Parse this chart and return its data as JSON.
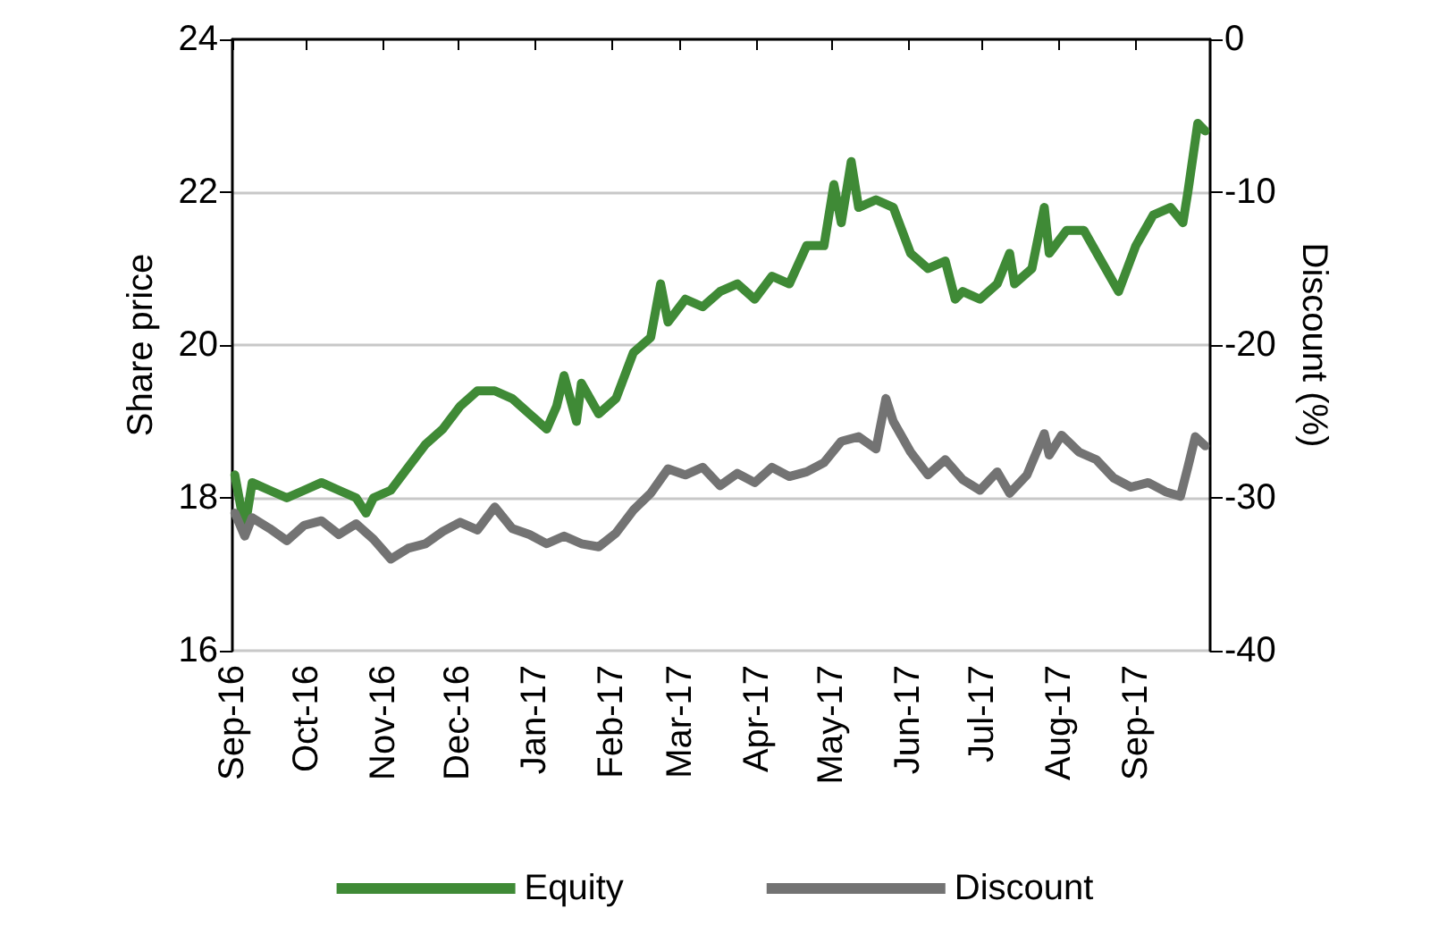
{
  "chart_data": {
    "type": "line",
    "ylabel": "Share price",
    "y2label": "Discount (%)",
    "xlim": [
      "2016-09-01",
      "2017-10-01"
    ],
    "xticks": [
      {
        "value": "2016-09-01",
        "label": "Sep-16"
      },
      {
        "value": "2016-10-01",
        "label": "Oct-16"
      },
      {
        "value": "2016-11-01",
        "label": "Nov-16"
      },
      {
        "value": "2016-12-01",
        "label": "Dec-16"
      },
      {
        "value": "2017-01-01",
        "label": "Jan-17"
      },
      {
        "value": "2017-02-01",
        "label": "Feb-17"
      },
      {
        "value": "2017-03-01",
        "label": "Mar-17"
      },
      {
        "value": "2017-04-01",
        "label": "Apr-17"
      },
      {
        "value": "2017-05-01",
        "label": "May-17"
      },
      {
        "value": "2017-06-01",
        "label": "Jun-17"
      },
      {
        "value": "2017-07-01",
        "label": "Jul-17"
      },
      {
        "value": "2017-08-01",
        "label": "Aug-17"
      },
      {
        "value": "2017-09-01",
        "label": "Sep-17"
      }
    ],
    "ylim": [
      16,
      24
    ],
    "yticks": [
      16,
      18,
      20,
      22,
      24
    ],
    "y2lim": [
      -40,
      0
    ],
    "y2ticks": [
      -40,
      -30,
      -20,
      -10,
      0
    ],
    "grid": "y",
    "legend": "bottom",
    "marker": "none",
    "line_style": "solid",
    "series": [
      {
        "name": "Equity",
        "color": "#3f8a36",
        "x": [
          "2016-09-02",
          "2016-09-06",
          "2016-09-09",
          "2016-09-16",
          "2016-09-23",
          "2016-09-30",
          "2016-10-07",
          "2016-10-14",
          "2016-10-21",
          "2016-10-25",
          "2016-10-28",
          "2016-11-04",
          "2016-11-11",
          "2016-11-18",
          "2016-11-25",
          "2016-12-02",
          "2016-12-09",
          "2016-12-16",
          "2016-12-23",
          "2016-12-30",
          "2017-01-06",
          "2017-01-10",
          "2017-01-13",
          "2017-01-18",
          "2017-01-20",
          "2017-01-27",
          "2017-02-03",
          "2017-02-10",
          "2017-02-17",
          "2017-02-21",
          "2017-02-24",
          "2017-03-03",
          "2017-03-10",
          "2017-03-17",
          "2017-03-24",
          "2017-03-31",
          "2017-04-07",
          "2017-04-14",
          "2017-04-21",
          "2017-04-28",
          "2017-05-02",
          "2017-05-05",
          "2017-05-09",
          "2017-05-12",
          "2017-05-19",
          "2017-05-26",
          "2017-06-02",
          "2017-06-09",
          "2017-06-16",
          "2017-06-20",
          "2017-06-23",
          "2017-06-30",
          "2017-07-07",
          "2017-07-12",
          "2017-07-14",
          "2017-07-21",
          "2017-07-26",
          "2017-07-28",
          "2017-08-04",
          "2017-08-11",
          "2017-08-18",
          "2017-08-25",
          "2017-09-01",
          "2017-09-08",
          "2017-09-15",
          "2017-09-20",
          "2017-09-22",
          "2017-09-26",
          "2017-09-29"
        ],
        "values": [
          18.3,
          17.6,
          18.2,
          18.1,
          18.0,
          18.1,
          18.2,
          18.1,
          18.0,
          17.8,
          18.0,
          18.1,
          18.4,
          18.7,
          18.9,
          19.2,
          19.4,
          19.4,
          19.3,
          19.1,
          18.9,
          19.2,
          19.6,
          19.0,
          19.5,
          19.1,
          19.3,
          19.9,
          20.1,
          20.8,
          20.3,
          20.6,
          20.5,
          20.7,
          20.8,
          20.6,
          20.9,
          20.8,
          21.3,
          21.3,
          22.1,
          21.6,
          22.4,
          21.8,
          21.9,
          21.8,
          21.2,
          21.0,
          21.1,
          20.6,
          20.7,
          20.6,
          20.8,
          21.2,
          20.8,
          21.0,
          21.8,
          21.2,
          21.5,
          21.5,
          21.1,
          20.7,
          21.3,
          21.7,
          21.8,
          21.6,
          22.0,
          22.9,
          22.8
        ]
      },
      {
        "name": "Discount",
        "color": "#737373",
        "axis": "y2",
        "x": [
          "2016-09-02",
          "2016-09-06",
          "2016-09-09",
          "2016-09-16",
          "2016-09-23",
          "2016-09-30",
          "2016-10-07",
          "2016-10-14",
          "2016-10-21",
          "2016-10-28",
          "2016-11-04",
          "2016-11-11",
          "2016-11-18",
          "2016-11-25",
          "2016-12-02",
          "2016-12-09",
          "2016-12-16",
          "2016-12-23",
          "2016-12-30",
          "2017-01-06",
          "2017-01-13",
          "2017-01-20",
          "2017-01-27",
          "2017-02-03",
          "2017-02-10",
          "2017-02-17",
          "2017-02-24",
          "2017-03-03",
          "2017-03-10",
          "2017-03-17",
          "2017-03-24",
          "2017-03-31",
          "2017-04-07",
          "2017-04-14",
          "2017-04-21",
          "2017-04-28",
          "2017-05-05",
          "2017-05-12",
          "2017-05-19",
          "2017-05-23",
          "2017-05-26",
          "2017-06-02",
          "2017-06-09",
          "2017-06-16",
          "2017-06-23",
          "2017-06-30",
          "2017-07-07",
          "2017-07-12",
          "2017-07-19",
          "2017-07-26",
          "2017-07-28",
          "2017-08-02",
          "2017-08-09",
          "2017-08-16",
          "2017-08-23",
          "2017-08-30",
          "2017-09-06",
          "2017-09-13",
          "2017-09-19",
          "2017-09-22",
          "2017-09-25",
          "2017-09-29"
        ],
        "values": [
          -31,
          -32.5,
          -31.3,
          -32,
          -32.8,
          -31.8,
          -31.5,
          -32.4,
          -31.7,
          -32.7,
          -34,
          -33.3,
          -33,
          -32.2,
          -31.6,
          -32.1,
          -30.6,
          -32,
          -32.4,
          -33,
          -32.5,
          -33,
          -33.2,
          -32.3,
          -30.8,
          -29.7,
          -28.1,
          -28.5,
          -28,
          -29.2,
          -28.4,
          -29,
          -28,
          -28.6,
          -28.3,
          -27.7,
          -26.3,
          -26,
          -26.8,
          -23.5,
          -25,
          -27,
          -28.5,
          -27.5,
          -28.8,
          -29.5,
          -28.3,
          -29.7,
          -28.5,
          -25.8,
          -27.2,
          -25.9,
          -27,
          -27.5,
          -28.7,
          -29.3,
          -29,
          -29.6,
          -29.9,
          -28,
          -26,
          -26.6
        ]
      }
    ]
  }
}
